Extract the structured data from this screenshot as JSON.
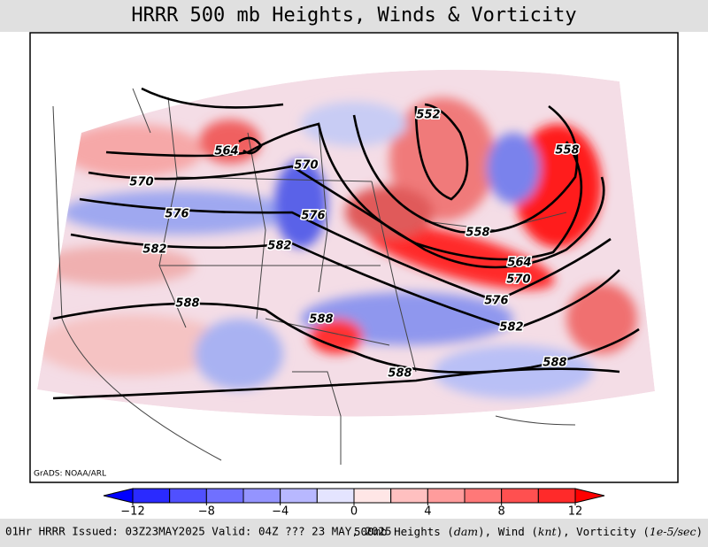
{
  "title": "HRRR 500 mb Heights, Winds & Vorticity",
  "credit": "GrADS: NOAA/ARL",
  "footer": {
    "left": "01Hr HRRR Issued: 03Z23MAY2025 Valid: 04Z ??? 23 MAY, 2025",
    "right": [
      "500mb Heights (",
      "dam",
      "), Wind (",
      "knt",
      "), Vorticity (",
      "1e-5/sec",
      ")"
    ]
  },
  "colorbar": {
    "colors": [
      "#0000ff",
      "#2a2aff",
      "#5050ff",
      "#7070ff",
      "#9494ff",
      "#b8b8ff",
      "#e4e4ff",
      "#ffe6e6",
      "#ffc0c0",
      "#ff9c9c",
      "#ff7878",
      "#ff5050",
      "#ff2a2a",
      "#ff0000"
    ],
    "ticks": [
      {
        "value": -12,
        "label": "−12"
      },
      {
        "value": -8,
        "label": "−8"
      },
      {
        "value": -4,
        "label": "−4"
      },
      0,
      4,
      8,
      12
    ]
  },
  "contour_labels": [
    552,
    558,
    564,
    570,
    570,
    576,
    576,
    558,
    582,
    582,
    564,
    570,
    576,
    588,
    588,
    582,
    588,
    588
  ]
}
